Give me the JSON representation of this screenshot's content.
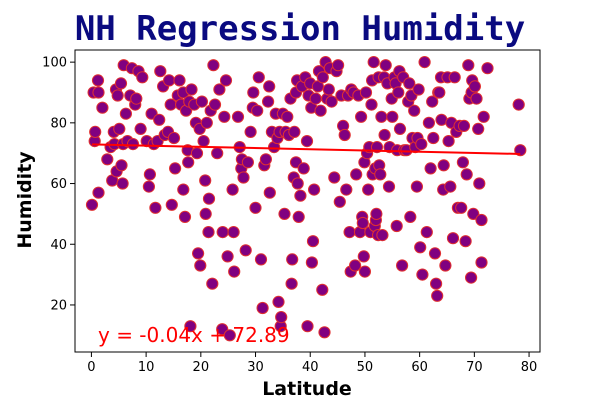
{
  "chart_data": {
    "type": "scatter",
    "title": "NH Regression Humidity",
    "xlabel": "Latitude",
    "ylabel": "Humidity",
    "xlim": [
      -3,
      82
    ],
    "ylim": [
      4.5,
      104
    ],
    "xticks": [
      0,
      10,
      20,
      30,
      40,
      50,
      60,
      70,
      80
    ],
    "yticks": [
      20,
      40,
      60,
      80,
      100
    ],
    "grid": false,
    "marker_fill": "#800080",
    "marker_edge": "#e03030",
    "regression": {
      "slope": -0.04,
      "intercept": 72.89,
      "color": "#ff0000",
      "equation": "y = -0.04x + 72.89"
    },
    "points": [
      [
        0.1,
        53
      ],
      [
        0.4,
        90
      ],
      [
        0.6,
        74
      ],
      [
        0.7,
        77
      ],
      [
        1.2,
        94
      ],
      [
        1.3,
        57
      ],
      [
        1.3,
        90
      ],
      [
        2.0,
        85
      ],
      [
        2.9,
        68
      ],
      [
        3.5,
        72
      ],
      [
        3.8,
        61
      ],
      [
        4.1,
        77
      ],
      [
        4.2,
        73
      ],
      [
        4.5,
        91
      ],
      [
        4.6,
        64
      ],
      [
        4.8,
        89
      ],
      [
        5.1,
        78
      ],
      [
        5.4,
        93
      ],
      [
        5.5,
        66
      ],
      [
        5.7,
        60
      ],
      [
        5.8,
        73
      ],
      [
        5.9,
        99
      ],
      [
        6.3,
        83
      ],
      [
        6.6,
        74
      ],
      [
        7.1,
        89
      ],
      [
        7.4,
        98
      ],
      [
        7.6,
        73
      ],
      [
        8.0,
        86
      ],
      [
        8.2,
        88
      ],
      [
        8.6,
        97
      ],
      [
        9.0,
        78
      ],
      [
        9.3,
        95
      ],
      [
        10.1,
        74
      ],
      [
        10.5,
        59
      ],
      [
        10.7,
        63
      ],
      [
        11.0,
        83
      ],
      [
        11.4,
        73
      ],
      [
        11.7,
        52
      ],
      [
        12.1,
        74
      ],
      [
        12.4,
        81
      ],
      [
        12.6,
        97
      ],
      [
        13.1,
        92
      ],
      [
        13.4,
        76
      ],
      [
        14.0,
        77
      ],
      [
        14.2,
        94
      ],
      [
        14.5,
        86
      ],
      [
        14.7,
        53
      ],
      [
        15.1,
        75
      ],
      [
        15.3,
        65
      ],
      [
        15.8,
        89
      ],
      [
        16.1,
        94
      ],
      [
        16.4,
        86
      ],
      [
        16.8,
        90
      ],
      [
        16.8,
        58
      ],
      [
        17.1,
        49
      ],
      [
        17.3,
        84
      ],
      [
        17.6,
        71
      ],
      [
        17.7,
        67
      ],
      [
        17.9,
        87
      ],
      [
        18.1,
        13
      ],
      [
        18.3,
        91
      ],
      [
        18.8,
        86
      ],
      [
        19.1,
        80
      ],
      [
        19.3,
        70
      ],
      [
        19.5,
        37
      ],
      [
        19.8,
        78
      ],
      [
        19.9,
        33
      ],
      [
        20.2,
        87
      ],
      [
        20.5,
        74
      ],
      [
        20.8,
        61
      ],
      [
        20.9,
        50
      ],
      [
        21.1,
        80
      ],
      [
        21.4,
        44
      ],
      [
        21.5,
        55
      ],
      [
        21.8,
        84
      ],
      [
        22.1,
        27
      ],
      [
        22.3,
        99
      ],
      [
        22.6,
        86
      ],
      [
        23.0,
        70
      ],
      [
        23.4,
        91
      ],
      [
        23.9,
        12
      ],
      [
        24.0,
        44
      ],
      [
        24.3,
        82
      ],
      [
        24.6,
        94
      ],
      [
        24.9,
        36
      ],
      [
        25.3,
        10
      ],
      [
        25.8,
        58
      ],
      [
        26.0,
        44
      ],
      [
        26.1,
        31
      ],
      [
        26.8,
        82
      ],
      [
        27.1,
        72
      ],
      [
        27.4,
        65
      ],
      [
        27.5,
        68
      ],
      [
        27.8,
        62
      ],
      [
        28.2,
        38
      ],
      [
        28.6,
        67
      ],
      [
        29.1,
        77
      ],
      [
        29.5,
        85
      ],
      [
        29.6,
        90
      ],
      [
        30.0,
        52
      ],
      [
        30.3,
        84
      ],
      [
        30.6,
        95
      ],
      [
        31.0,
        35
      ],
      [
        31.3,
        19
      ],
      [
        31.6,
        66
      ],
      [
        31.9,
        68
      ],
      [
        32.3,
        87
      ],
      [
        32.5,
        92
      ],
      [
        32.6,
        57
      ],
      [
        33.0,
        77
      ],
      [
        33.4,
        72
      ],
      [
        33.7,
        83
      ],
      [
        34.0,
        75
      ],
      [
        34.2,
        21
      ],
      [
        34.4,
        77
      ],
      [
        34.6,
        13
      ],
      [
        34.7,
        16
      ],
      [
        35.0,
        83
      ],
      [
        35.3,
        50
      ],
      [
        35.5,
        77
      ],
      [
        35.8,
        82
      ],
      [
        36.1,
        76
      ],
      [
        36.4,
        88
      ],
      [
        36.6,
        27
      ],
      [
        36.7,
        35
      ],
      [
        37.0,
        62
      ],
      [
        37.1,
        77
      ],
      [
        37.4,
        90
      ],
      [
        37.4,
        67
      ],
      [
        37.6,
        94
      ],
      [
        37.7,
        60
      ],
      [
        37.9,
        49
      ],
      [
        38.2,
        56
      ],
      [
        38.5,
        92
      ],
      [
        38.8,
        65
      ],
      [
        39.1,
        95
      ],
      [
        39.4,
        74
      ],
      [
        39.5,
        13
      ],
      [
        39.7,
        89
      ],
      [
        40.0,
        93
      ],
      [
        40.2,
        85
      ],
      [
        40.3,
        34
      ],
      [
        40.5,
        41
      ],
      [
        40.7,
        58
      ],
      [
        41.0,
        88
      ],
      [
        41.4,
        92
      ],
      [
        41.6,
        97
      ],
      [
        41.9,
        84
      ],
      [
        42.2,
        25
      ],
      [
        42.3,
        95
      ],
      [
        42.6,
        11
      ],
      [
        42.8,
        100
      ],
      [
        43.1,
        88
      ],
      [
        43.4,
        91
      ],
      [
        43.6,
        98
      ],
      [
        43.9,
        87
      ],
      [
        44.4,
        62
      ],
      [
        44.8,
        97
      ],
      [
        45.1,
        99
      ],
      [
        45.4,
        54
      ],
      [
        45.7,
        89
      ],
      [
        46.0,
        79
      ],
      [
        46.3,
        76
      ],
      [
        46.6,
        58
      ],
      [
        46.9,
        89
      ],
      [
        47.2,
        44
      ],
      [
        47.4,
        31
      ],
      [
        47.5,
        91
      ],
      [
        47.9,
        90
      ],
      [
        48.2,
        33
      ],
      [
        48.4,
        63
      ],
      [
        48.8,
        89
      ],
      [
        49.1,
        44
      ],
      [
        49.3,
        82
      ],
      [
        49.5,
        49
      ],
      [
        49.6,
        47
      ],
      [
        49.8,
        36
      ],
      [
        49.9,
        67
      ],
      [
        50.0,
        31
      ],
      [
        50.2,
        90
      ],
      [
        50.4,
        70
      ],
      [
        50.6,
        58
      ],
      [
        50.8,
        72
      ],
      [
        51.0,
        44
      ],
      [
        51.2,
        86
      ],
      [
        51.3,
        94
      ],
      [
        51.4,
        63
      ],
      [
        51.6,
        100
      ],
      [
        51.8,
        46
      ],
      [
        51.9,
        65
      ],
      [
        52.0,
        48
      ],
      [
        52.1,
        50
      ],
      [
        52.2,
        72
      ],
      [
        52.4,
        43
      ],
      [
        52.5,
        95
      ],
      [
        52.6,
        66
      ],
      [
        52.8,
        63
      ],
      [
        53.0,
        82
      ],
      [
        53.2,
        43
      ],
      [
        53.5,
        95
      ],
      [
        53.6,
        76
      ],
      [
        53.8,
        99
      ],
      [
        54.1,
        93
      ],
      [
        54.4,
        59
      ],
      [
        54.5,
        72
      ],
      [
        54.9,
        88
      ],
      [
        55.0,
        82
      ],
      [
        55.4,
        95
      ],
      [
        55.6,
        93
      ],
      [
        55.8,
        46
      ],
      [
        55.9,
        71
      ],
      [
        56.1,
        90
      ],
      [
        56.3,
        97
      ],
      [
        56.4,
        78
      ],
      [
        56.8,
        33
      ],
      [
        57.0,
        95
      ],
      [
        57.2,
        71
      ],
      [
        57.6,
        71
      ],
      [
        57.9,
        87
      ],
      [
        58.1,
        93
      ],
      [
        58.3,
        49
      ],
      [
        58.5,
        89
      ],
      [
        58.7,
        75
      ],
      [
        59.0,
        84
      ],
      [
        59.2,
        72
      ],
      [
        59.5,
        59
      ],
      [
        59.6,
        75
      ],
      [
        59.8,
        91
      ],
      [
        60.1,
        39
      ],
      [
        60.3,
        73
      ],
      [
        60.5,
        30
      ],
      [
        60.9,
        100
      ],
      [
        61.3,
        44
      ],
      [
        61.7,
        80
      ],
      [
        62.0,
        65
      ],
      [
        62.3,
        87
      ],
      [
        62.5,
        75
      ],
      [
        62.8,
        37
      ],
      [
        63.0,
        27
      ],
      [
        63.2,
        23
      ],
      [
        63.4,
        90
      ],
      [
        63.6,
        90
      ],
      [
        63.9,
        95
      ],
      [
        64.0,
        81
      ],
      [
        64.3,
        58
      ],
      [
        64.4,
        66
      ],
      [
        64.7,
        33
      ],
      [
        65.1,
        95
      ],
      [
        65.3,
        74
      ],
      [
        65.6,
        59
      ],
      [
        65.8,
        80
      ],
      [
        66.1,
        42
      ],
      [
        66.4,
        95
      ],
      [
        66.7,
        77
      ],
      [
        67.0,
        52
      ],
      [
        67.3,
        79
      ],
      [
        67.6,
        52
      ],
      [
        67.9,
        67
      ],
      [
        68.1,
        79
      ],
      [
        68.4,
        41
      ],
      [
        68.6,
        63
      ],
      [
        68.9,
        99
      ],
      [
        69.1,
        88
      ],
      [
        69.4,
        29
      ],
      [
        69.5,
        90
      ],
      [
        69.6,
        94
      ],
      [
        69.8,
        50
      ],
      [
        70.1,
        92
      ],
      [
        70.4,
        88
      ],
      [
        70.7,
        78
      ],
      [
        70.9,
        60
      ],
      [
        71.3,
        48
      ],
      [
        71.3,
        34
      ],
      [
        71.7,
        82
      ],
      [
        72.4,
        98
      ],
      [
        78.1,
        86
      ],
      [
        78.4,
        71
      ]
    ]
  }
}
